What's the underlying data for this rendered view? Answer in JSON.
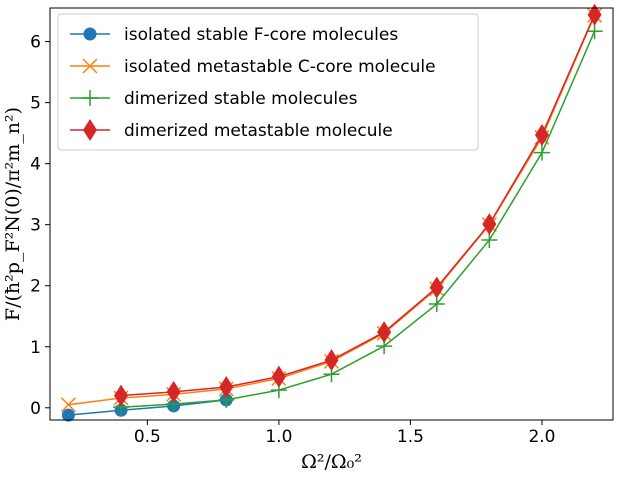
{
  "chart_data": {
    "type": "line",
    "xlabel": "Ω²/Ω₀²",
    "ylabel": "F/(ħ²p_F²N(0)/π²m_n²)",
    "xlim": [
      0.13,
      2.27
    ],
    "ylim": [
      -0.2,
      6.55
    ],
    "xticks": [
      "0.5",
      "1.0",
      "1.5",
      "2.0"
    ],
    "xtick_values": [
      0.5,
      1.0,
      1.5,
      2.0
    ],
    "yticks": [
      "0",
      "1",
      "2",
      "3",
      "4",
      "5",
      "6"
    ],
    "ytick_values": [
      0,
      1,
      2,
      3,
      4,
      5,
      6
    ],
    "grid": false,
    "legend_position": "top-left",
    "series": [
      {
        "name": "isolated stable F-core molecules",
        "color": "#1f77b4",
        "marker": "circle",
        "x": [
          0.2,
          0.4,
          0.6,
          0.8
        ],
        "y": [
          -0.12,
          -0.04,
          0.03,
          0.13
        ]
      },
      {
        "name": "isolated metastable C-core molecule",
        "color": "#ff7f0e",
        "marker": "x",
        "x": [
          0.2,
          0.4,
          0.6,
          0.8,
          1.0,
          1.2,
          1.4,
          1.6,
          1.8,
          2.0,
          2.2
        ],
        "y": [
          0.05,
          0.16,
          0.22,
          0.31,
          0.48,
          0.76,
          1.22,
          1.95,
          3.0,
          4.43,
          6.43
        ]
      },
      {
        "name": "dimerized stable molecules",
        "color": "#2ca02c",
        "marker": "plus",
        "x": [
          0.4,
          0.6,
          0.8,
          1.0,
          1.2,
          1.4,
          1.6,
          1.8,
          2.0,
          2.2
        ],
        "y": [
          0.01,
          0.06,
          0.13,
          0.29,
          0.55,
          1.01,
          1.7,
          2.75,
          4.18,
          6.17
        ]
      },
      {
        "name": "dimerized metastable molecule",
        "color": "#d62728",
        "marker": "diamond",
        "x": [
          0.4,
          0.6,
          0.8,
          1.0,
          1.2,
          1.4,
          1.6,
          1.8,
          2.0,
          2.2
        ],
        "y": [
          0.2,
          0.26,
          0.34,
          0.51,
          0.78,
          1.24,
          1.97,
          3.01,
          4.47,
          6.44
        ]
      }
    ]
  }
}
